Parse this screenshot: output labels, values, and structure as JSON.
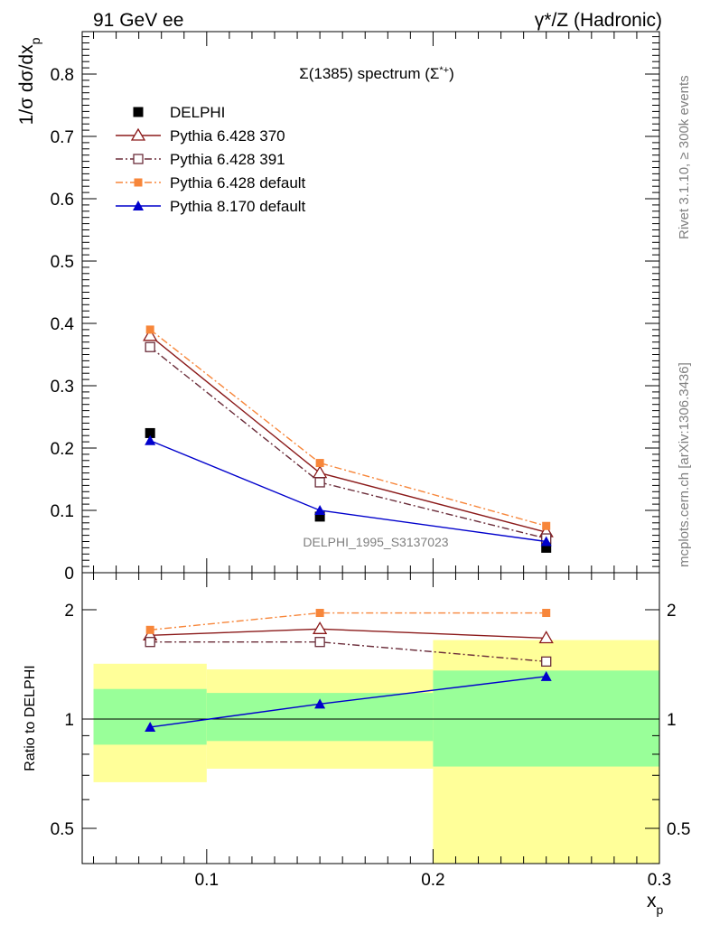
{
  "header": {
    "left": "91 GeV ee",
    "right": "γ*/Z (Hadronic)"
  },
  "side_labels": {
    "rivet": "Rivet 3.1.10, ≥ 300k events",
    "mcplots": "mcplots.cern.ch [arXiv:1306.3436]"
  },
  "chart_data": [
    {
      "type": "line",
      "title": "Σ(1385) spectrum (Σ*+)",
      "xlabel": "xp",
      "ylabel": "1/σ dσ/dxp",
      "xlim": [
        0.045,
        0.3
      ],
      "ylim": [
        0,
        0.87
      ],
      "yticks": [
        "0",
        "0.1",
        "0.2",
        "0.3",
        "0.4",
        "0.5",
        "0.6",
        "0.7",
        "0.8"
      ],
      "grid": false,
      "legend_position": "top-left",
      "watermark": "DELPHI_1995_S3137023",
      "x": [
        0.075,
        0.15,
        0.25
      ],
      "x_bin_edges": [
        0.05,
        0.1,
        0.2,
        0.3
      ],
      "series": [
        {
          "name": "DELPHI",
          "values": [
            0.224,
            0.09,
            0.04
          ],
          "color": "#000000",
          "marker": "square-filled",
          "line": "none"
        },
        {
          "name": "Pythia 6.428 370",
          "values": [
            0.38,
            0.16,
            0.065
          ],
          "color": "#8b1a1a",
          "marker": "triangle-open",
          "line": "solid"
        },
        {
          "name": "Pythia 6.428 391",
          "values": [
            0.362,
            0.145,
            0.055
          ],
          "color": "#6b2d3a",
          "marker": "square-open",
          "line": "dashdot"
        },
        {
          "name": "Pythia 6.428 default",
          "values": [
            0.39,
            0.176,
            0.075
          ],
          "color": "#f7863a",
          "marker": "square-filled-small",
          "line": "dashdot"
        },
        {
          "name": "Pythia 8.170 default",
          "values": [
            0.212,
            0.1,
            0.05
          ],
          "color": "#0000cc",
          "marker": "triangle-filled",
          "line": "solid"
        }
      ]
    },
    {
      "type": "line",
      "xlabel": "xp",
      "ylabel": "Ratio to DELPHI",
      "xlim": [
        0.045,
        0.3
      ],
      "ylim": [
        0.4,
        2.4
      ],
      "log_y": true,
      "yticks": [
        "0.5",
        "1",
        "2"
      ],
      "xticks": [
        "0.1",
        "0.2",
        "0.3"
      ],
      "x": [
        0.075,
        0.15,
        0.25
      ],
      "bands": [
        {
          "x0": 0.05,
          "x1": 0.1,
          "yellow": [
            0.67,
            1.42
          ],
          "green": [
            0.85,
            1.21
          ]
        },
        {
          "x0": 0.1,
          "x1": 0.2,
          "yellow": [
            0.73,
            1.37
          ],
          "green": [
            0.87,
            1.18
          ]
        },
        {
          "x0": 0.2,
          "x1": 0.3,
          "yellow": [
            0.37,
            1.65
          ],
          "green": [
            0.74,
            1.36
          ]
        }
      ],
      "series": [
        {
          "name": "Pythia 6.428 370",
          "values": [
            1.7,
            1.77,
            1.67
          ],
          "color": "#8b1a1a",
          "marker": "triangle-open",
          "line": "solid"
        },
        {
          "name": "Pythia 6.428 391",
          "values": [
            1.63,
            1.63,
            1.44
          ],
          "color": "#6b2d3a",
          "marker": "square-open",
          "line": "dashdot"
        },
        {
          "name": "Pythia 6.428 default",
          "values": [
            1.76,
            1.96,
            1.96
          ],
          "color": "#f7863a",
          "marker": "square-filled-small",
          "line": "dashdot"
        },
        {
          "name": "Pythia 8.170 default",
          "values": [
            0.95,
            1.1,
            1.31
          ],
          "color": "#0000cc",
          "marker": "triangle-filled",
          "line": "solid"
        }
      ]
    }
  ]
}
